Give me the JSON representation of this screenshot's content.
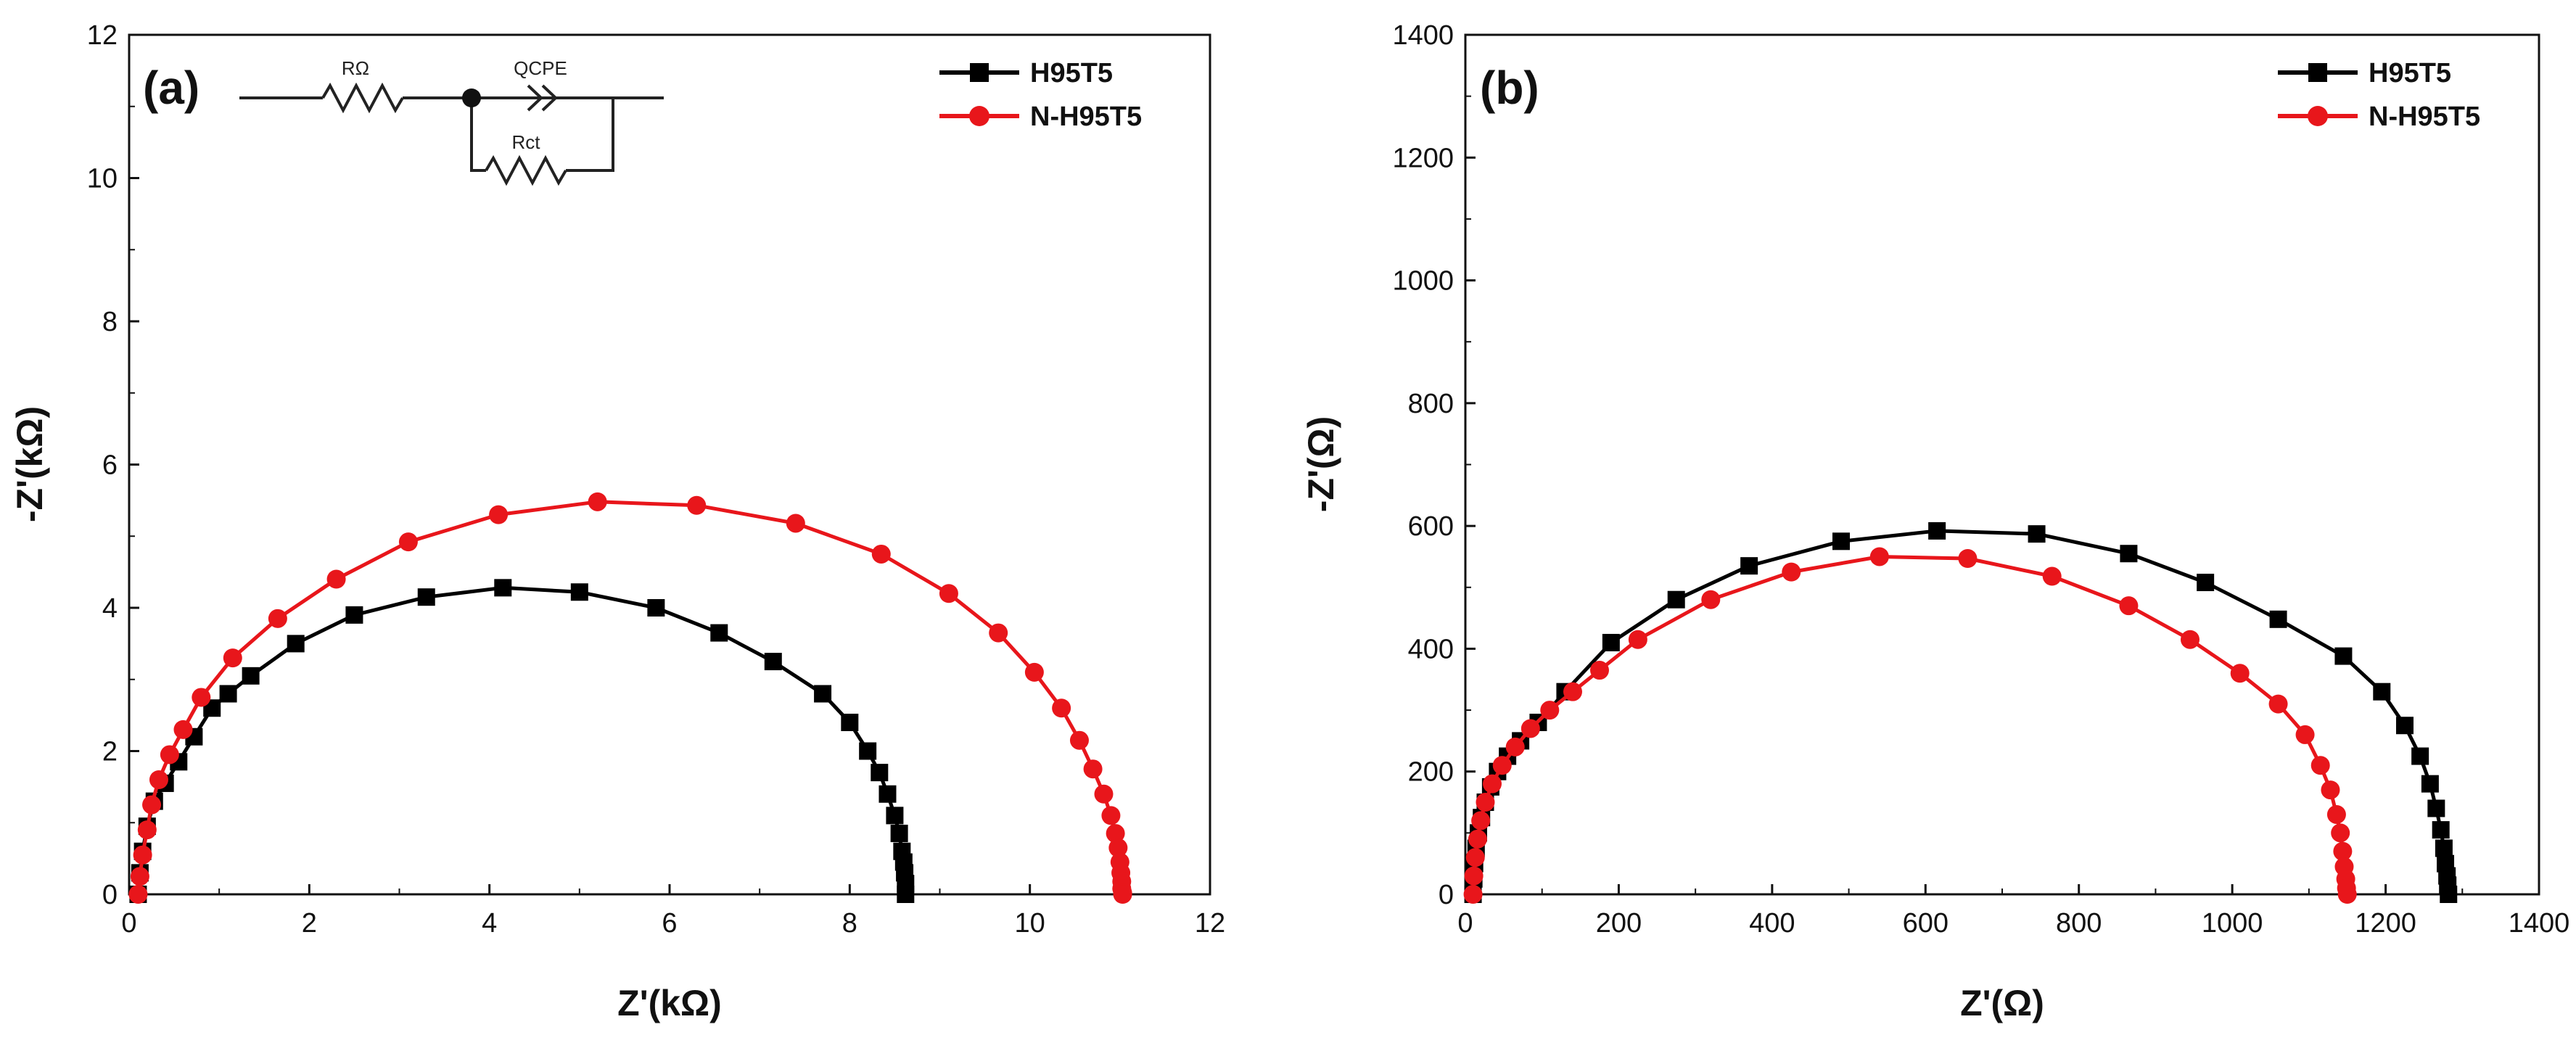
{
  "chart_data": [
    {
      "type": "line",
      "panel_label": "(a)",
      "xlabel": "Z'(kΩ)",
      "ylabel": "-Z'(kΩ)",
      "xlim": [
        0,
        12
      ],
      "ylim": [
        0,
        12
      ],
      "xticks": [
        "0",
        "2",
        "4",
        "6",
        "8",
        "10",
        "12"
      ],
      "yticks": [
        "0",
        "2",
        "4",
        "6",
        "8",
        "10",
        "12"
      ],
      "legend_position": "top-right",
      "grid": false,
      "inset": {
        "description": "equivalent circuit",
        "labels": {
          "r_ohm": "RΩ",
          "q_cpe": "QCPE",
          "r_ct": "Rct"
        }
      },
      "series": [
        {
          "name": "H95T5",
          "color": "#000000",
          "marker": "square",
          "x": [
            0.1,
            0.12,
            0.15,
            0.2,
            0.28,
            0.4,
            0.55,
            0.72,
            0.92,
            1.1,
            1.35,
            1.85,
            2.5,
            3.3,
            4.15,
            5.0,
            5.85,
            6.55,
            7.15,
            7.7,
            8.0,
            8.2,
            8.33,
            8.42,
            8.5,
            8.55,
            8.58,
            8.6,
            8.61,
            8.62,
            8.62
          ],
          "y": [
            0.0,
            0.3,
            0.6,
            0.95,
            1.3,
            1.55,
            1.85,
            2.2,
            2.6,
            2.8,
            3.05,
            3.5,
            3.9,
            4.15,
            4.28,
            4.22,
            4.0,
            3.65,
            3.25,
            2.8,
            2.4,
            2.0,
            1.7,
            1.4,
            1.1,
            0.85,
            0.6,
            0.45,
            0.3,
            0.15,
            0.0
          ]
        },
        {
          "name": "N-H95T5",
          "color": "#e8161b",
          "marker": "circle",
          "x": [
            0.1,
            0.12,
            0.15,
            0.2,
            0.25,
            0.33,
            0.45,
            0.6,
            0.8,
            1.15,
            1.65,
            2.3,
            3.1,
            4.1,
            5.2,
            6.3,
            7.4,
            8.35,
            9.1,
            9.65,
            10.05,
            10.35,
            10.55,
            10.7,
            10.82,
            10.9,
            10.95,
            10.98,
            11.0,
            11.01,
            11.02,
            11.02,
            11.03,
            11.03
          ],
          "y": [
            0.0,
            0.25,
            0.55,
            0.9,
            1.25,
            1.6,
            1.95,
            2.3,
            2.75,
            3.3,
            3.85,
            4.4,
            4.92,
            5.3,
            5.48,
            5.43,
            5.18,
            4.75,
            4.2,
            3.65,
            3.1,
            2.6,
            2.15,
            1.75,
            1.4,
            1.1,
            0.85,
            0.65,
            0.45,
            0.3,
            0.18,
            0.08,
            0.02,
            0.0
          ]
        }
      ]
    },
    {
      "type": "line",
      "panel_label": "(b)",
      "xlabel": "Z'(Ω)",
      "ylabel": "-Z'(Ω)",
      "xlim": [
        0,
        1400
      ],
      "ylim": [
        0,
        1400
      ],
      "xticks": [
        "0",
        "200",
        "400",
        "600",
        "800",
        "1000",
        "1200",
        "1400"
      ],
      "yticks": [
        "0",
        "200",
        "400",
        "600",
        "800",
        "1000",
        "1200",
        "1400"
      ],
      "legend_position": "top-right",
      "grid": false,
      "series": [
        {
          "name": "H95T5",
          "color": "#000000",
          "marker": "square",
          "x": [
            10,
            11,
            12,
            14,
            17,
            21,
            26,
            33,
            42,
            55,
            72,
            95,
            130,
            190,
            275,
            370,
            490,
            615,
            745,
            865,
            965,
            1060,
            1145,
            1195,
            1225,
            1245,
            1258,
            1266,
            1272,
            1276,
            1278,
            1280,
            1281,
            1282
          ],
          "y": [
            0,
            25,
            50,
            75,
            100,
            125,
            150,
            175,
            200,
            225,
            250,
            280,
            330,
            410,
            480,
            535,
            575,
            592,
            587,
            555,
            508,
            448,
            388,
            330,
            275,
            225,
            180,
            140,
            105,
            75,
            50,
            30,
            15,
            0
          ]
        },
        {
          "name": "N-H95T5",
          "color": "#e8161b",
          "marker": "circle",
          "x": [
            10,
            11,
            13,
            16,
            20,
            26,
            35,
            48,
            65,
            85,
            110,
            140,
            175,
            225,
            320,
            425,
            540,
            655,
            765,
            865,
            945,
            1010,
            1060,
            1095,
            1115,
            1128,
            1136,
            1141,
            1144,
            1146,
            1148,
            1149,
            1150
          ],
          "y": [
            0,
            30,
            60,
            90,
            120,
            150,
            180,
            210,
            240,
            270,
            300,
            330,
            365,
            415,
            480,
            525,
            550,
            547,
            518,
            470,
            415,
            360,
            310,
            260,
            210,
            170,
            130,
            100,
            70,
            45,
            25,
            10,
            0
          ]
        }
      ]
    }
  ]
}
